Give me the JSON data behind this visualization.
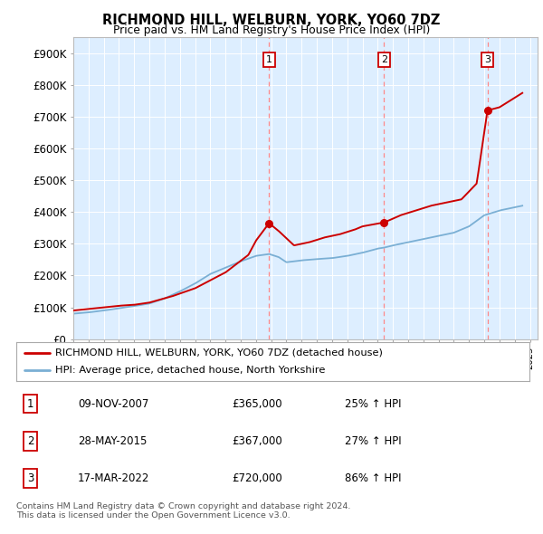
{
  "title": "RICHMOND HILL, WELBURN, YORK, YO60 7DZ",
  "subtitle": "Price paid vs. HM Land Registry's House Price Index (HPI)",
  "ylabel_ticks": [
    "£0",
    "£100K",
    "£200K",
    "£300K",
    "£400K",
    "£500K",
    "£600K",
    "£700K",
    "£800K",
    "£900K"
  ],
  "ytick_values": [
    0,
    100000,
    200000,
    300000,
    400000,
    500000,
    600000,
    700000,
    800000,
    900000
  ],
  "ylim": [
    0,
    950000
  ],
  "xlim_start": 1995.0,
  "xlim_end": 2025.5,
  "red_line_color": "#cc0000",
  "blue_line_color": "#7aafd4",
  "vline_color": "#ff8888",
  "marker_color": "#cc0000",
  "sale_points": [
    {
      "year": 2007.86,
      "price": 365000,
      "label": "1"
    },
    {
      "year": 2015.41,
      "price": 367000,
      "label": "2"
    },
    {
      "year": 2022.21,
      "price": 720000,
      "label": "3"
    }
  ],
  "table_rows": [
    {
      "num": "1",
      "date": "09-NOV-2007",
      "price": "£365,000",
      "change": "25% ↑ HPI"
    },
    {
      "num": "2",
      "date": "28-MAY-2015",
      "price": "£367,000",
      "change": "27% ↑ HPI"
    },
    {
      "num": "3",
      "date": "17-MAR-2022",
      "price": "£720,000",
      "change": "86% ↑ HPI"
    }
  ],
  "legend_entries": [
    "RICHMOND HILL, WELBURN, YORK, YO60 7DZ (detached house)",
    "HPI: Average price, detached house, North Yorkshire"
  ],
  "footer": "Contains HM Land Registry data © Crown copyright and database right 2024.\nThis data is licensed under the Open Government Licence v3.0.",
  "plot_bg_color": "#ddeeff",
  "fig_bg_color": "#ffffff"
}
